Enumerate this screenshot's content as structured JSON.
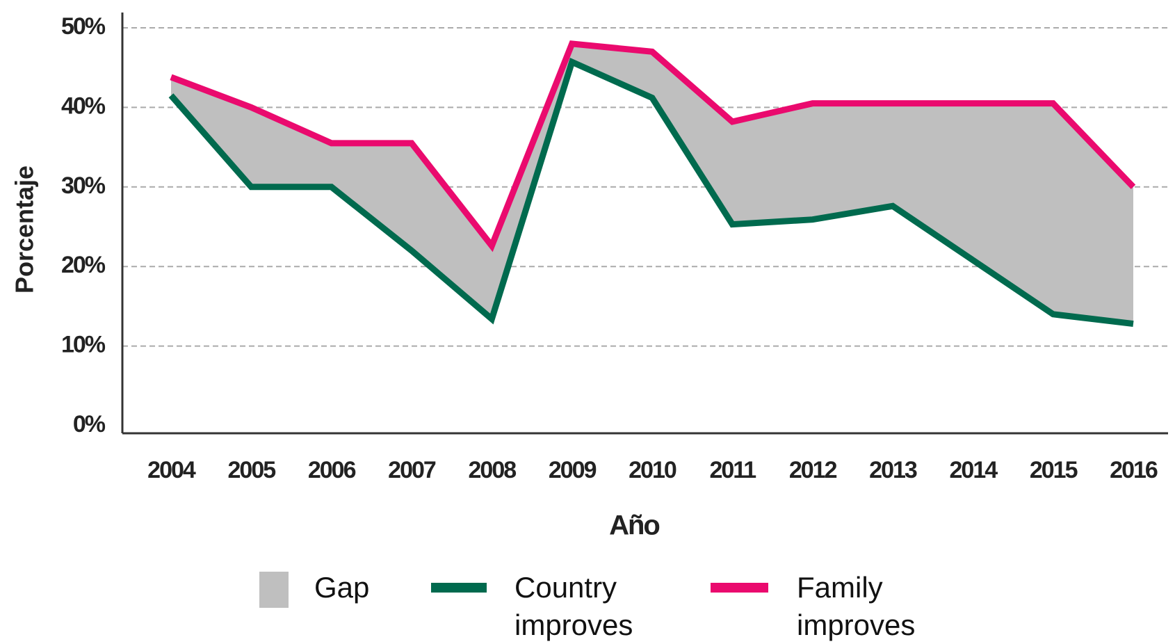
{
  "chart_data": {
    "type": "line",
    "x_label": "Año",
    "y_label": "Porcentaje",
    "categories": [
      "2004",
      "2005",
      "2006",
      "2007",
      "2008",
      "2009",
      "2010",
      "2011",
      "2012",
      "2013",
      "2014",
      "2015",
      "2016"
    ],
    "gap": {
      "name": "Gap",
      "color": "#bfbfbf"
    },
    "series": [
      {
        "name": "Country improves",
        "color": "#006a4e",
        "values": [
          41.5,
          30,
          30,
          22,
          13.4,
          45.7,
          41.2,
          25.3,
          25.9,
          27.6,
          20.8,
          14,
          12.8
        ]
      },
      {
        "name": "Family improves",
        "color": "#ea0a6e",
        "values": [
          43.8,
          40,
          35.5,
          35.5,
          22.6,
          48,
          47,
          38.2,
          40.5,
          40.5,
          40.5,
          40.5,
          30
        ]
      }
    ],
    "ylim": [
      0,
      50
    ],
    "yticks": [
      {
        "value": 0,
        "label": "0%"
      },
      {
        "value": 10,
        "label": "10%"
      },
      {
        "value": 20,
        "label": "20%"
      },
      {
        "value": 30,
        "label": "30%"
      },
      {
        "value": 40,
        "label": "40%"
      },
      {
        "value": 50,
        "label": "50%"
      }
    ],
    "grid": true
  }
}
